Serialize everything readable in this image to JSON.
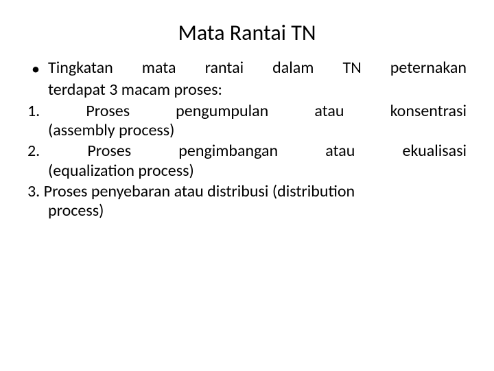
{
  "slide": {
    "title": "Mata Rantai TN",
    "bullet": {
      "line1": "Tingkatan mata rantai dalam TN peternakan",
      "line2": "terdapat 3 macam proses:"
    },
    "items": [
      {
        "num": "1.",
        "line1_a": "Proses",
        "line1_b": "pengumpulan",
        "line1_c": "atau",
        "line1_d": "konsentrasi",
        "line2": "(assembly process)"
      },
      {
        "num": "2.",
        "line1_a": "Proses",
        "line1_b": "pengimbangan",
        "line1_c": "atau",
        "line1_d": "ekualisasi",
        "line2": "(equalization process)"
      },
      {
        "num": "3.",
        "line1_full": "Proses penyebaran atau distribusi (distribution",
        "line2": "process)"
      }
    ],
    "colors": {
      "background": "#ffffff",
      "text": "#000000"
    },
    "font": {
      "title_size_pt": 24,
      "body_size_pt": 18,
      "family": "Calibri"
    }
  }
}
